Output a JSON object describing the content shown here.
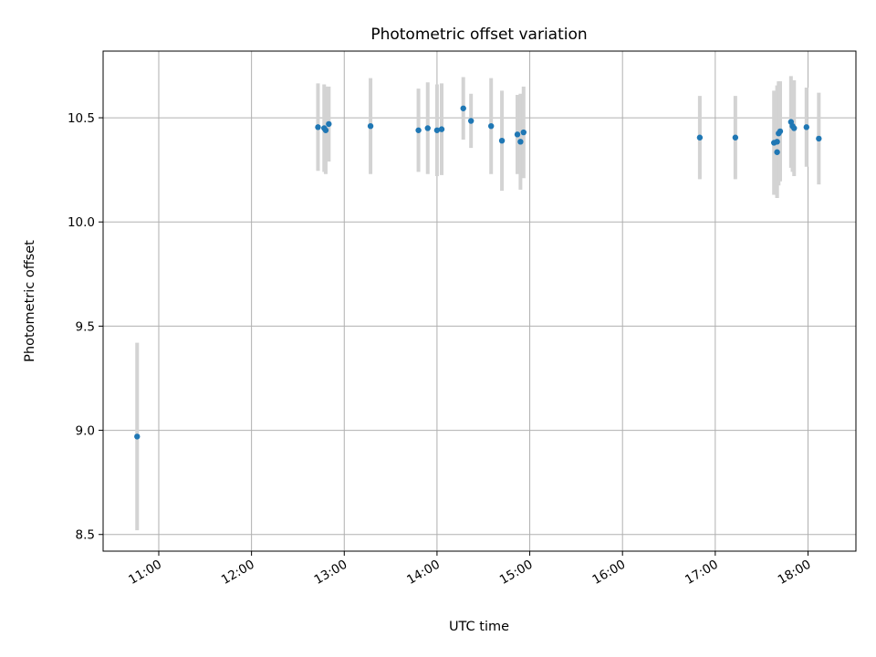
{
  "chart_data": {
    "type": "scatter",
    "title": "Photometric offset variation",
    "xlabel": "UTC time",
    "ylabel": "Photometric offset",
    "xlim": [
      "10:24",
      "18:31"
    ],
    "ylim": [
      8.42,
      10.82
    ],
    "xticks": [
      "11:00",
      "12:00",
      "13:00",
      "14:00",
      "15:00",
      "16:00",
      "17:00",
      "18:00"
    ],
    "yticks": [
      8.5,
      9.0,
      9.5,
      10.0,
      10.5
    ],
    "ytick_labels": [
      "8.5",
      "9.0",
      "9.5",
      "10.0",
      "10.5"
    ],
    "grid": true,
    "legend": "none",
    "colors": {
      "points": "#1f77b4",
      "errorbars": "#d3d3d3",
      "grid": "#b0b0b0"
    },
    "points": [
      {
        "x": "10:46",
        "y": 8.97,
        "err": 0.45
      },
      {
        "x": "12:43",
        "y": 10.455,
        "err": 0.21
      },
      {
        "x": "12:47",
        "y": 10.45,
        "err": 0.21
      },
      {
        "x": "12:48",
        "y": 10.44,
        "err": 0.21
      },
      {
        "x": "12:50",
        "y": 10.47,
        "err": 0.18
      },
      {
        "x": "13:17",
        "y": 10.46,
        "err": 0.23
      },
      {
        "x": "13:48",
        "y": 10.44,
        "err": 0.2
      },
      {
        "x": "13:54",
        "y": 10.45,
        "err": 0.22
      },
      {
        "x": "14:00",
        "y": 10.44,
        "err": 0.22
      },
      {
        "x": "14:03",
        "y": 10.445,
        "err": 0.22
      },
      {
        "x": "14:17",
        "y": 10.545,
        "err": 0.15
      },
      {
        "x": "14:22",
        "y": 10.485,
        "err": 0.13
      },
      {
        "x": "14:35",
        "y": 10.46,
        "err": 0.23
      },
      {
        "x": "14:42",
        "y": 10.39,
        "err": 0.24
      },
      {
        "x": "14:52",
        "y": 10.42,
        "err": 0.19
      },
      {
        "x": "14:54",
        "y": 10.385,
        "err": 0.23
      },
      {
        "x": "14:56",
        "y": 10.43,
        "err": 0.22
      },
      {
        "x": "16:50",
        "y": 10.405,
        "err": 0.2
      },
      {
        "x": "17:13",
        "y": 10.405,
        "err": 0.2
      },
      {
        "x": "17:38",
        "y": 10.38,
        "err": 0.25
      },
      {
        "x": "17:40",
        "y": 10.335,
        "err": 0.22
      },
      {
        "x": "17:40",
        "y": 10.385,
        "err": 0.27
      },
      {
        "x": "17:41",
        "y": 10.425,
        "err": 0.25
      },
      {
        "x": "17:42",
        "y": 10.435,
        "err": 0.24
      },
      {
        "x": "17:49",
        "y": 10.48,
        "err": 0.22
      },
      {
        "x": "17:50",
        "y": 10.46,
        "err": 0.22
      },
      {
        "x": "17:51",
        "y": 10.45,
        "err": 0.23
      },
      {
        "x": "17:59",
        "y": 10.455,
        "err": 0.19
      },
      {
        "x": "18:07",
        "y": 10.4,
        "err": 0.22
      }
    ]
  }
}
